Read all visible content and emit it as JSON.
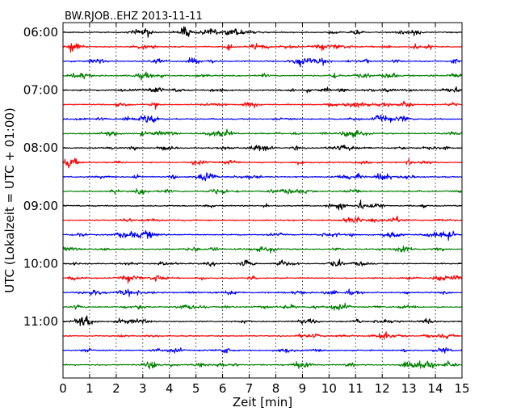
{
  "chart_data": {
    "type": "line",
    "title": "BW.RJOB..EHZ 2013-11-11",
    "xlabel": "Zeit  [min]",
    "ylabel": "UTC (Lokalzeit = UTC + 01:00)",
    "xlim": [
      0,
      15
    ],
    "x_ticks": [
      "0",
      "1",
      "2",
      "3",
      "4",
      "5",
      "6",
      "7",
      "8",
      "9",
      "10",
      "11",
      "12",
      "13",
      "14",
      "15"
    ],
    "y_tick_labels": [
      "06:00",
      "07:00",
      "08:00",
      "09:00",
      "10:00",
      "11:00"
    ],
    "grid": "vertical dotted",
    "trace_colors": [
      "#000000",
      "#ff0000",
      "#0000ff",
      "#008000"
    ],
    "trace_count": 24,
    "trace_interval_min": 15,
    "traces": [
      {
        "start": "06:00",
        "color": "#000000"
      },
      {
        "start": "06:15",
        "color": "#ff0000"
      },
      {
        "start": "06:30",
        "color": "#0000ff"
      },
      {
        "start": "06:45",
        "color": "#008000"
      },
      {
        "start": "07:00",
        "color": "#000000"
      },
      {
        "start": "07:15",
        "color": "#ff0000"
      },
      {
        "start": "07:30",
        "color": "#0000ff"
      },
      {
        "start": "07:45",
        "color": "#008000"
      },
      {
        "start": "08:00",
        "color": "#000000"
      },
      {
        "start": "08:15",
        "color": "#ff0000"
      },
      {
        "start": "08:30",
        "color": "#0000ff"
      },
      {
        "start": "08:45",
        "color": "#008000"
      },
      {
        "start": "09:00",
        "color": "#000000"
      },
      {
        "start": "09:15",
        "color": "#ff0000"
      },
      {
        "start": "09:30",
        "color": "#0000ff"
      },
      {
        "start": "09:45",
        "color": "#008000"
      },
      {
        "start": "10:00",
        "color": "#000000"
      },
      {
        "start": "10:15",
        "color": "#ff0000"
      },
      {
        "start": "10:30",
        "color": "#0000ff"
      },
      {
        "start": "10:45",
        "color": "#008000"
      },
      {
        "start": "11:00",
        "color": "#000000"
      },
      {
        "start": "11:15",
        "color": "#ff0000"
      },
      {
        "start": "11:30",
        "color": "#0000ff"
      },
      {
        "start": "11:45",
        "color": "#008000"
      }
    ]
  }
}
